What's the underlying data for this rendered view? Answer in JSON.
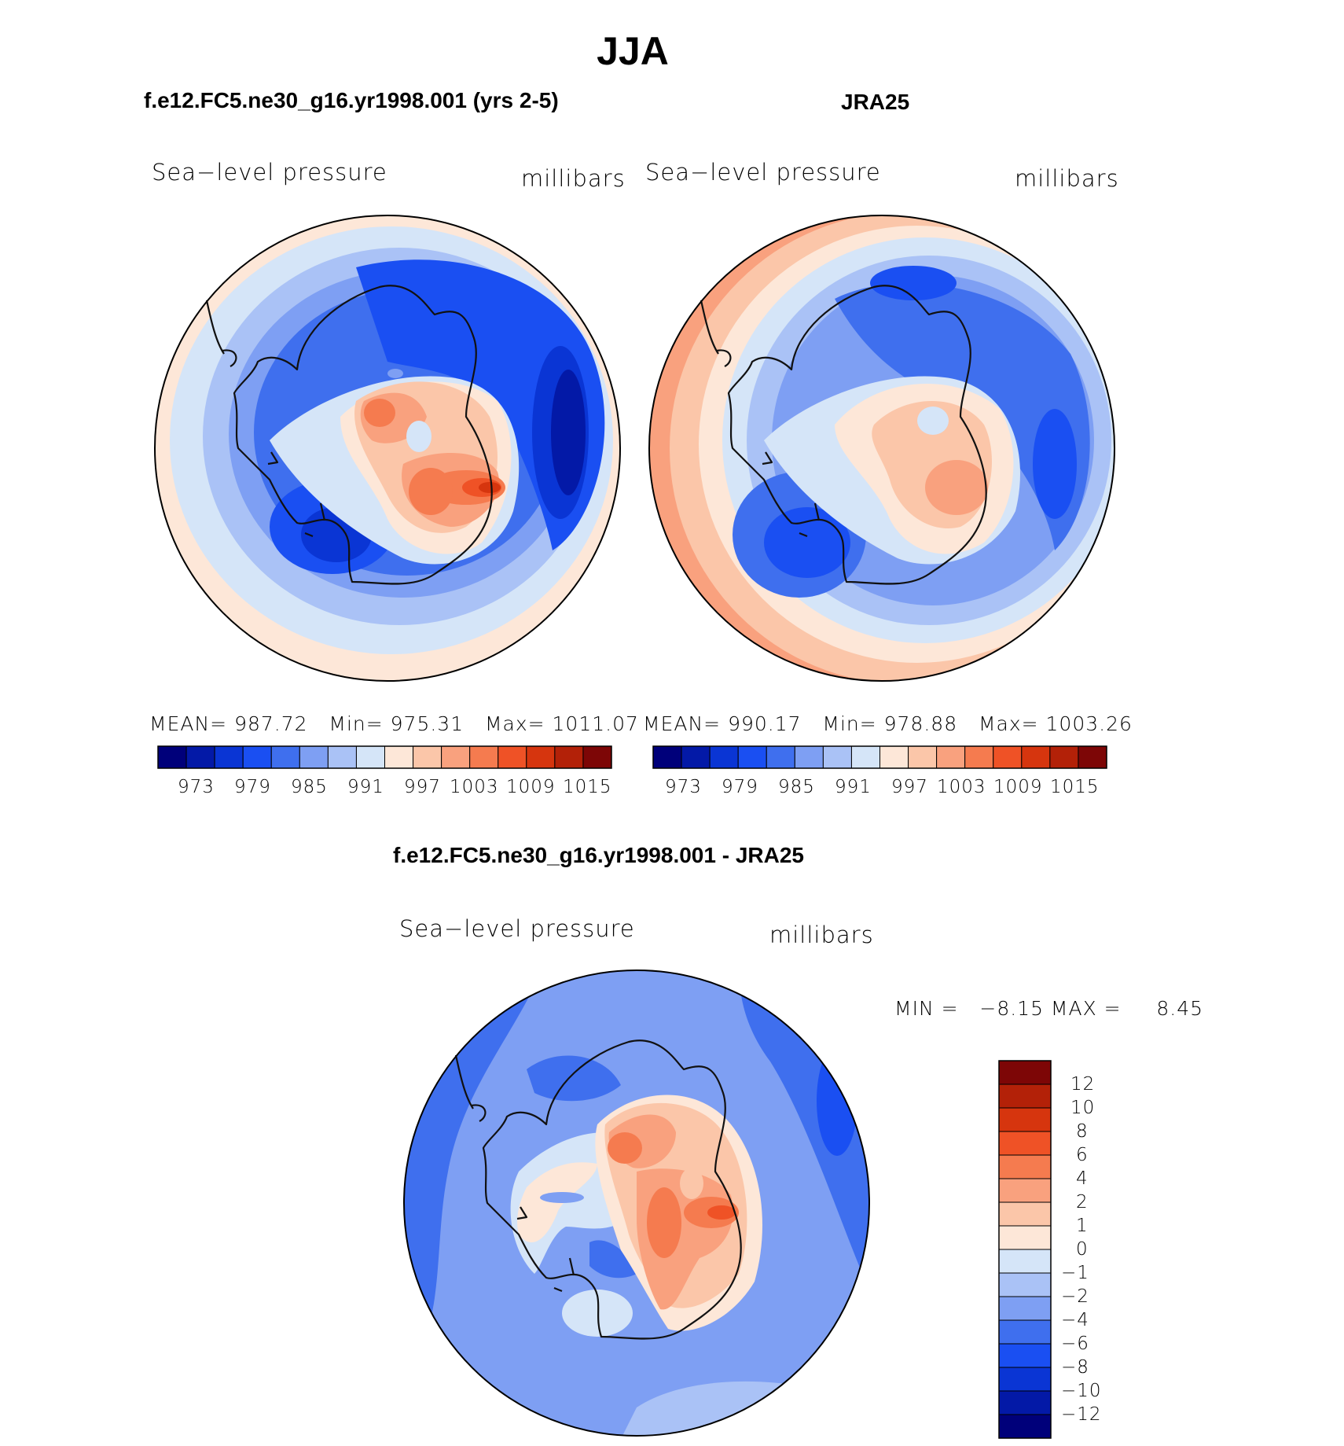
{
  "main_title": "JJA",
  "colors": {
    "scale": [
      "#00007a",
      "#0319a7",
      "#0a35d4",
      "#1a4ff2",
      "#3f6fee",
      "#7e9ff3",
      "#aac2f6",
      "#d5e5f8",
      "#fde7d8",
      "#fbc6a9",
      "#f9a17e",
      "#f57b4f",
      "#ef5226",
      "#d6350e",
      "#b32108",
      "#7d0606"
    ],
    "coast": "#111111"
  },
  "panels": [
    {
      "title": "f.e12.FC5.ne30_g16.yr1998.001 (yrs 2-5)",
      "variable": "Sea−level pressure",
      "units": "millibars",
      "stats": "MEAN= 987.72   Min= 975.31   Max= 1011.07",
      "colorbar_labels": [
        "973",
        "979",
        "985",
        "991",
        "997",
        "1003",
        "1009",
        "1015"
      ]
    },
    {
      "title": "JRA25",
      "variable": "Sea−level pressure",
      "units": "millibars",
      "stats": "MEAN= 990.17   Min= 978.88   Max= 1003.26",
      "colorbar_labels": [
        "973",
        "979",
        "985",
        "991",
        "997",
        "1003",
        "1009",
        "1015"
      ]
    }
  ],
  "diff_panel": {
    "title": "f.e12.FC5.ne30_g16.yr1998.001 - JRA25",
    "variable": "Sea−level pressure",
    "units": "millibars",
    "minmax": "MIN =   −8.15 MAX =     8.45",
    "colorbar_labels": [
      "12",
      "10",
      "8",
      "6",
      "4",
      "2",
      "1",
      "0",
      "−1",
      "−2",
      "−4",
      "−6",
      "−8",
      "−10",
      "−12"
    ]
  }
}
